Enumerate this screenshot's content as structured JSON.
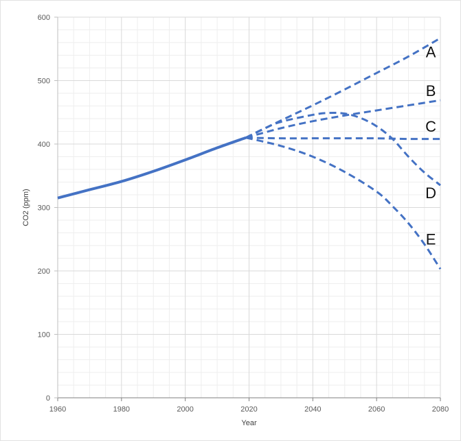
{
  "chart_data": {
    "type": "line",
    "title": "",
    "xlabel": "Year",
    "ylabel": "CO2 (ppm)",
    "xlim": [
      1960,
      2080
    ],
    "ylim": [
      0,
      600
    ],
    "x_ticks": [
      1960,
      1980,
      2000,
      2020,
      2040,
      2060,
      2080
    ],
    "y_ticks": [
      0,
      100,
      200,
      300,
      400,
      500,
      600
    ],
    "x_minor_step": 5,
    "y_minor_step": 20,
    "grid": true,
    "legend": "none",
    "colors": {
      "line": "#4472c4",
      "grid_major": "#d9d9d9",
      "grid_minor": "#eeeeee"
    },
    "series": [
      {
        "style": "solid",
        "x": [
          1960,
          1970,
          1980,
          1990,
          2000,
          2010,
          2019
        ],
        "y": [
          315,
          328,
          341,
          357,
          375,
          394,
          410
        ]
      },
      {
        "name": "A",
        "style": "dashed",
        "x": [
          2019,
          2030,
          2040,
          2050,
          2060,
          2070,
          2080
        ],
        "y": [
          410,
          437,
          461,
          486,
          512,
          538,
          567
        ]
      },
      {
        "name": "B",
        "style": "dashed",
        "x": [
          2019,
          2030,
          2040,
          2050,
          2060,
          2070,
          2080
        ],
        "y": [
          410,
          425,
          436,
          445,
          453,
          461,
          469
        ]
      },
      {
        "name": "C",
        "style": "dashed",
        "x": [
          2019,
          2030,
          2040,
          2050,
          2060,
          2070,
          2080
        ],
        "y": [
          410,
          409,
          409,
          409,
          409,
          408,
          408
        ]
      },
      {
        "name": "D",
        "style": "dashed",
        "x": [
          2019,
          2025,
          2030,
          2040,
          2045,
          2050,
          2055,
          2060,
          2065,
          2070,
          2075,
          2080
        ],
        "y": [
          410,
          425,
          435,
          446,
          449,
          448,
          441,
          428,
          408,
          380,
          355,
          335
        ]
      },
      {
        "name": "E",
        "style": "dashed",
        "x": [
          2019,
          2030,
          2040,
          2050,
          2060,
          2065,
          2070,
          2075,
          2080
        ],
        "y": [
          410,
          397,
          380,
          356,
          325,
          302,
          275,
          242,
          203
        ]
      }
    ],
    "annotations": [
      {
        "text": "A",
        "x": 2077,
        "y": 543
      },
      {
        "text": "B",
        "x": 2077,
        "y": 482
      },
      {
        "text": "C",
        "x": 2077,
        "y": 426
      },
      {
        "text": "D",
        "x": 2077,
        "y": 321
      },
      {
        "text": "E",
        "x": 2077,
        "y": 248
      }
    ]
  }
}
